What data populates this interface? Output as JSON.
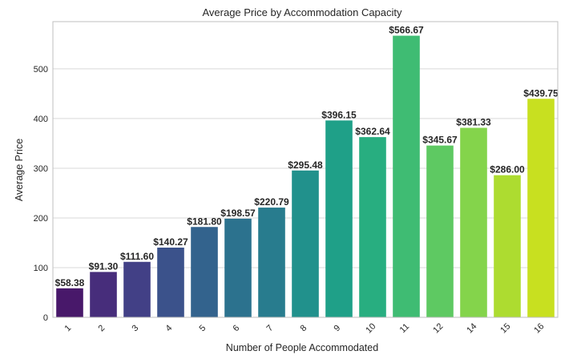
{
  "chart_data": {
    "type": "bar",
    "title": "Average Price by Accommodation Capacity",
    "xlabel": "Number of People Accommodated",
    "ylabel": "Average Price",
    "categories": [
      "1",
      "2",
      "3",
      "4",
      "5",
      "6",
      "7",
      "8",
      "9",
      "10",
      "11",
      "12",
      "14",
      "15",
      "16"
    ],
    "values": [
      58.38,
      91.3,
      111.6,
      140.27,
      181.8,
      198.57,
      220.79,
      295.48,
      396.15,
      362.64,
      566.67,
      345.67,
      381.33,
      286.0,
      439.75
    ],
    "data_labels": [
      "$58.38",
      "$91.30",
      "$111.60",
      "$140.27",
      "$181.80",
      "$198.57",
      "$220.79",
      "$295.48",
      "$396.15",
      "$362.64",
      "$566.67",
      "$345.67",
      "$381.33",
      "$286.00",
      "$439.75"
    ],
    "yticks": [
      0,
      100,
      200,
      300,
      400,
      500
    ],
    "ylim": [
      0,
      595
    ],
    "grid": true,
    "palette": "viridis",
    "colors": [
      "#48186a",
      "#472d7b",
      "#424086",
      "#3b528b",
      "#33638d",
      "#2c728e",
      "#287c8e",
      "#21918c",
      "#1fa088",
      "#28ae80",
      "#3fbc73",
      "#5ec962",
      "#84d44b",
      "#addc30",
      "#c8e020"
    ]
  }
}
